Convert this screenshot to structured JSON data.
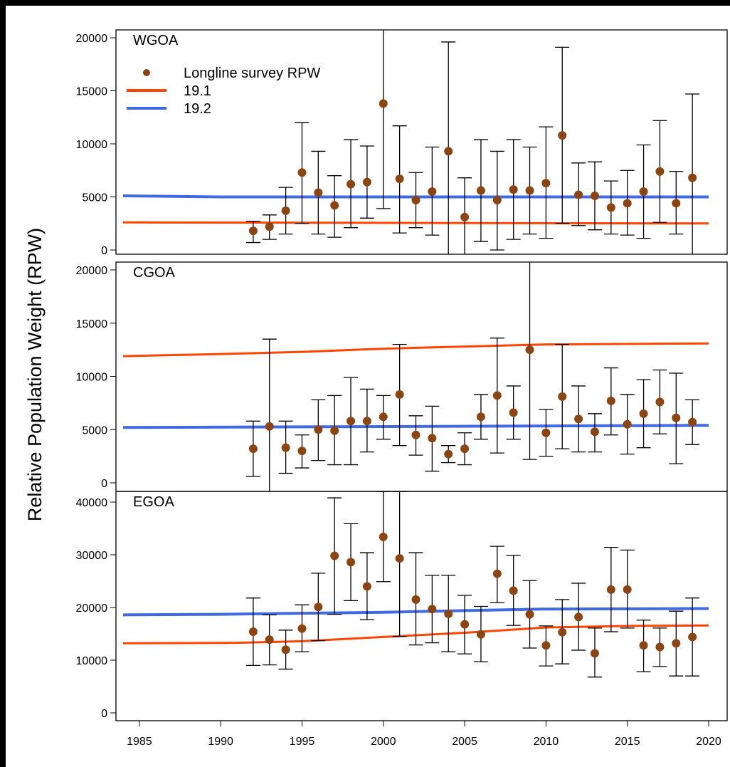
{
  "chart_data": {
    "type": "scatter",
    "ylabel": "Relative Population Weight (RPW)",
    "xlim": [
      1984,
      2020
    ],
    "x_ticks": [
      1985,
      1990,
      1995,
      2000,
      2005,
      2010,
      2015,
      2020
    ],
    "legend": {
      "placement": "top-left",
      "entries": [
        {
          "name": "Longline survey RPW",
          "kind": "point",
          "color": "#8B4513"
        },
        {
          "name": "19.1",
          "kind": "line",
          "color": "#FF4500"
        },
        {
          "name": "19.2",
          "kind": "line",
          "color": "#4169E1"
        }
      ]
    },
    "panels": [
      {
        "label": "WGOA",
        "ylim": [
          0,
          20000
        ],
        "y_ticks": [
          0,
          5000,
          10000,
          15000,
          20000
        ],
        "survey": [
          {
            "x": 1992,
            "y": 1800,
            "lo": 700,
            "hi": 2700
          },
          {
            "x": 1993,
            "y": 2200,
            "lo": 1000,
            "hi": 3300
          },
          {
            "x": 1994,
            "y": 3700,
            "lo": 1500,
            "hi": 5900
          },
          {
            "x": 1995,
            "y": 7300,
            "lo": 2500,
            "hi": 12000
          },
          {
            "x": 1996,
            "y": 5400,
            "lo": 1500,
            "hi": 9300
          },
          {
            "x": 1997,
            "y": 4200,
            "lo": 1200,
            "hi": 7000
          },
          {
            "x": 1998,
            "y": 6200,
            "lo": 2100,
            "hi": 10400
          },
          {
            "x": 1999,
            "y": 6400,
            "lo": 3000,
            "hi": 9800
          },
          {
            "x": 2000,
            "y": 13800,
            "lo": 3900,
            "hi": 22000
          },
          {
            "x": 2001,
            "y": 6700,
            "lo": 1600,
            "hi": 11700
          },
          {
            "x": 2002,
            "y": 4700,
            "lo": 2100,
            "hi": 7300
          },
          {
            "x": 2003,
            "y": 5500,
            "lo": 1400,
            "hi": 9700
          },
          {
            "x": 2004,
            "y": 9300,
            "lo": -1000,
            "hi": 19600
          },
          {
            "x": 2005,
            "y": 3100,
            "lo": -500,
            "hi": 6800
          },
          {
            "x": 2006,
            "y": 5600,
            "lo": 800,
            "hi": 10400
          },
          {
            "x": 2007,
            "y": 4700,
            "lo": 0,
            "hi": 9300
          },
          {
            "x": 2008,
            "y": 5700,
            "lo": 1000,
            "hi": 10400
          },
          {
            "x": 2009,
            "y": 5600,
            "lo": 1500,
            "hi": 9700
          },
          {
            "x": 2010,
            "y": 6300,
            "lo": 1100,
            "hi": 11600
          },
          {
            "x": 2011,
            "y": 10800,
            "lo": 2500,
            "hi": 19100
          },
          {
            "x": 2012,
            "y": 5200,
            "lo": 2300,
            "hi": 8200
          },
          {
            "x": 2013,
            "y": 5100,
            "lo": 1900,
            "hi": 8300
          },
          {
            "x": 2014,
            "y": 4000,
            "lo": 1500,
            "hi": 6500
          },
          {
            "x": 2015,
            "y": 4400,
            "lo": 1400,
            "hi": 7500
          },
          {
            "x": 2016,
            "y": 5500,
            "lo": 1100,
            "hi": 9900
          },
          {
            "x": 2017,
            "y": 7400,
            "lo": 2600,
            "hi": 12200
          },
          {
            "x": 2018,
            "y": 4400,
            "lo": 1500,
            "hi": 7400
          },
          {
            "x": 2019,
            "y": 6800,
            "lo": -1000,
            "hi": 14700
          }
        ],
        "model_19_1": [
          [
            1984,
            2600
          ],
          [
            2020,
            2500
          ]
        ],
        "model_19_2": [
          [
            1984,
            5100
          ],
          [
            1990,
            5000
          ],
          [
            2020,
            5000
          ]
        ]
      },
      {
        "label": "CGOA",
        "ylim": [
          0,
          20000
        ],
        "y_ticks": [
          0,
          5000,
          10000,
          15000,
          20000
        ],
        "survey": [
          {
            "x": 1992,
            "y": 3200,
            "lo": 600,
            "hi": 5800
          },
          {
            "x": 1993,
            "y": 5300,
            "lo": -1000,
            "hi": 13500
          },
          {
            "x": 1994,
            "y": 3300,
            "lo": 900,
            "hi": 5800
          },
          {
            "x": 1995,
            "y": 3000,
            "lo": 1400,
            "hi": 4500
          },
          {
            "x": 1996,
            "y": 5000,
            "lo": 2100,
            "hi": 7800
          },
          {
            "x": 1997,
            "y": 4900,
            "lo": 1700,
            "hi": 8200
          },
          {
            "x": 1998,
            "y": 5800,
            "lo": 1700,
            "hi": 9900
          },
          {
            "x": 1999,
            "y": 5800,
            "lo": 2900,
            "hi": 8800
          },
          {
            "x": 2000,
            "y": 6200,
            "lo": 4100,
            "hi": 8200
          },
          {
            "x": 2001,
            "y": 8300,
            "lo": 3500,
            "hi": 13000
          },
          {
            "x": 2002,
            "y": 4500,
            "lo": 2600,
            "hi": 6300
          },
          {
            "x": 2003,
            "y": 4200,
            "lo": 1100,
            "hi": 7200
          },
          {
            "x": 2004,
            "y": 2700,
            "lo": 1900,
            "hi": 3500
          },
          {
            "x": 2005,
            "y": 3200,
            "lo": 1700,
            "hi": 4700
          },
          {
            "x": 2006,
            "y": 6200,
            "lo": 4100,
            "hi": 8300
          },
          {
            "x": 2007,
            "y": 8200,
            "lo": 2800,
            "hi": 13600
          },
          {
            "x": 2008,
            "y": 6600,
            "lo": 4100,
            "hi": 9100
          },
          {
            "x": 2009,
            "y": 12500,
            "lo": 2200,
            "hi": 22000
          },
          {
            "x": 2010,
            "y": 4700,
            "lo": 2500,
            "hi": 6900
          },
          {
            "x": 2011,
            "y": 8100,
            "lo": 3200,
            "hi": 13000
          },
          {
            "x": 2012,
            "y": 6000,
            "lo": 2900,
            "hi": 9100
          },
          {
            "x": 2013,
            "y": 4800,
            "lo": 2900,
            "hi": 6500
          },
          {
            "x": 2014,
            "y": 7700,
            "lo": 4500,
            "hi": 10800
          },
          {
            "x": 2015,
            "y": 5500,
            "lo": 2700,
            "hi": 8300
          },
          {
            "x": 2016,
            "y": 6500,
            "lo": 3300,
            "hi": 9700
          },
          {
            "x": 2017,
            "y": 7600,
            "lo": 4600,
            "hi": 10600
          },
          {
            "x": 2018,
            "y": 6100,
            "lo": 1800,
            "hi": 10300
          },
          {
            "x": 2019,
            "y": 5700,
            "lo": 3600,
            "hi": 7800
          }
        ],
        "model_19_1": [
          [
            1984,
            11900
          ],
          [
            1990,
            12100
          ],
          [
            1995,
            12300
          ],
          [
            2000,
            12600
          ],
          [
            2005,
            12800
          ],
          [
            2010,
            13000
          ],
          [
            2020,
            13100
          ]
        ],
        "model_19_2": [
          [
            1984,
            5200
          ],
          [
            2020,
            5400
          ]
        ]
      },
      {
        "label": "EGOA",
        "ylim": [
          0,
          40000
        ],
        "y_ticks": [
          0,
          10000,
          20000,
          30000,
          40000
        ],
        "survey": [
          {
            "x": 1992,
            "y": 15400,
            "lo": 9000,
            "hi": 21800
          },
          {
            "x": 1993,
            "y": 13900,
            "lo": 9100,
            "hi": 18600
          },
          {
            "x": 1994,
            "y": 12000,
            "lo": 8300,
            "hi": 15700
          },
          {
            "x": 1995,
            "y": 16000,
            "lo": 11600,
            "hi": 20500
          },
          {
            "x": 1996,
            "y": 20100,
            "lo": 13700,
            "hi": 26500
          },
          {
            "x": 1997,
            "y": 29800,
            "lo": 18700,
            "hi": 40800
          },
          {
            "x": 1998,
            "y": 28600,
            "lo": 21300,
            "hi": 35900
          },
          {
            "x": 1999,
            "y": 24000,
            "lo": 17700,
            "hi": 30400
          },
          {
            "x": 2000,
            "y": 33400,
            "lo": 24900,
            "hi": 42000
          },
          {
            "x": 2001,
            "y": 29300,
            "lo": 14500,
            "hi": 42000
          },
          {
            "x": 2002,
            "y": 21500,
            "lo": 12900,
            "hi": 30400
          },
          {
            "x": 2003,
            "y": 19700,
            "lo": 13300,
            "hi": 26100
          },
          {
            "x": 2004,
            "y": 18800,
            "lo": 11600,
            "hi": 26100
          },
          {
            "x": 2005,
            "y": 16800,
            "lo": 11200,
            "hi": 22300
          },
          {
            "x": 2006,
            "y": 14900,
            "lo": 9700,
            "hi": 20200
          },
          {
            "x": 2007,
            "y": 26400,
            "lo": 20900,
            "hi": 31600
          },
          {
            "x": 2008,
            "y": 23200,
            "lo": 16600,
            "hi": 29900
          },
          {
            "x": 2009,
            "y": 18700,
            "lo": 12300,
            "hi": 25100
          },
          {
            "x": 2010,
            "y": 12800,
            "lo": 8900,
            "hi": 16500
          },
          {
            "x": 2011,
            "y": 15300,
            "lo": 9300,
            "hi": 21500
          },
          {
            "x": 2012,
            "y": 18200,
            "lo": 11900,
            "hi": 24600
          },
          {
            "x": 2013,
            "y": 11300,
            "lo": 6800,
            "hi": 16100
          },
          {
            "x": 2014,
            "y": 23400,
            "lo": 15400,
            "hi": 31400
          },
          {
            "x": 2015,
            "y": 23400,
            "lo": 16100,
            "hi": 30900
          },
          {
            "x": 2016,
            "y": 12800,
            "lo": 7800,
            "hi": 17600
          },
          {
            "x": 2017,
            "y": 12500,
            "lo": 8800,
            "hi": 16100
          },
          {
            "x": 2018,
            "y": 13200,
            "lo": 7000,
            "hi": 19300
          },
          {
            "x": 2019,
            "y": 14400,
            "lo": 7000,
            "hi": 21800
          }
        ],
        "model_19_1": [
          [
            1984,
            13200
          ],
          [
            1991,
            13300
          ],
          [
            1995,
            13600
          ],
          [
            2000,
            14400
          ],
          [
            2005,
            15200
          ],
          [
            2010,
            16200
          ],
          [
            2015,
            16500
          ],
          [
            2020,
            16600
          ]
        ],
        "model_19_2": [
          [
            1984,
            18600
          ],
          [
            1990,
            18700
          ],
          [
            1995,
            18900
          ],
          [
            2000,
            19100
          ],
          [
            2005,
            19400
          ],
          [
            2010,
            19700
          ],
          [
            2020,
            19800
          ]
        ]
      }
    ]
  }
}
